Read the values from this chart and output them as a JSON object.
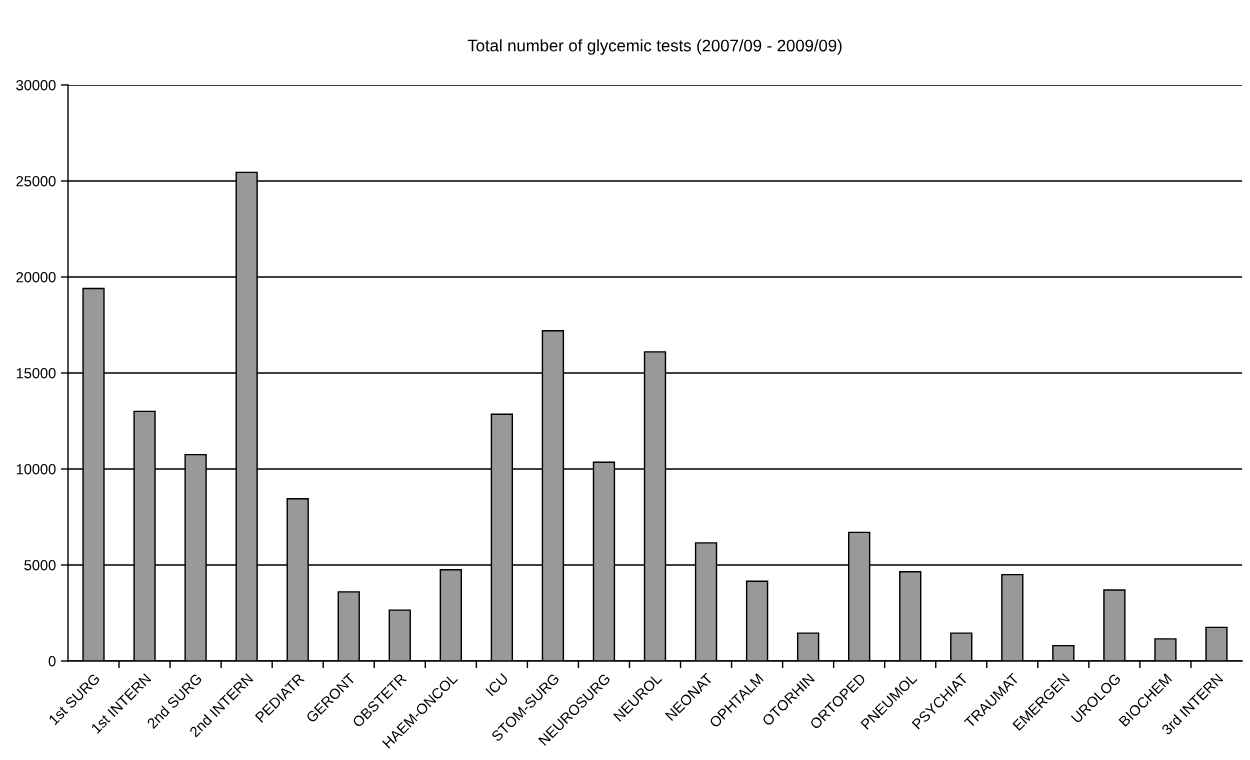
{
  "chart_data": {
    "type": "bar",
    "title": "Total number of glycemic tests (2007/09 - 2009/09)",
    "categories": [
      "1st SURG",
      "1st INTERN",
      "2nd SURG",
      "2nd INTERN",
      "PEDIATR",
      "GERONT",
      "OBSTETR",
      "HAEM-ONCOL",
      "ICU",
      "STOM-SURG",
      "NEUROSURG",
      "NEUROL",
      "NEONAT",
      "OPHTALM",
      "OTORHIN",
      "ORTOPED",
      "PNEUMOL",
      "PSYCHIAT",
      "TRAUMAT",
      "EMERGEN",
      "UROLOG",
      "BIOCHEM",
      "3rd INTERN"
    ],
    "values": [
      19400,
      13000,
      10750,
      25450,
      8450,
      3600,
      2650,
      4750,
      12850,
      17200,
      10350,
      16100,
      6150,
      4150,
      1450,
      6700,
      4650,
      1450,
      4500,
      800,
      3700,
      1150,
      1750
    ],
    "color": "#999999",
    "ylim": [
      0,
      30000
    ],
    "yticks": [
      0,
      5000,
      10000,
      15000,
      20000,
      25000,
      30000
    ],
    "grid": "y"
  }
}
